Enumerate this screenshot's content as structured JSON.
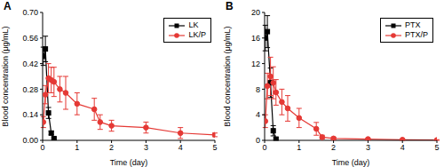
{
  "chart_data": [
    {
      "type": "line",
      "title": "A",
      "x_label": "Time (day)",
      "y_label": "Blood concentration (μg/mL)",
      "xlim": [
        0,
        5
      ],
      "xticks": [
        0,
        1,
        2,
        3,
        4,
        5
      ],
      "ylim": [
        0,
        0.7
      ],
      "yticks": [
        {
          "value": 0,
          "label": "0.00"
        },
        {
          "value": 0.14,
          "label": "0.14"
        },
        {
          "value": 0.28,
          "label": "0.28"
        },
        {
          "value": 0.42,
          "label": "0.42"
        },
        {
          "value": 0.56,
          "label": "0.56"
        },
        {
          "value": 0.7,
          "label": "0.70"
        }
      ],
      "grid": false,
      "legend": "top-right",
      "series": [
        {
          "name": "LK",
          "color": "#000000",
          "marker": "square",
          "x": [
            0.02,
            0.08,
            0.17,
            0.25,
            0.33
          ],
          "values": [
            0.46,
            0.5,
            0.15,
            0.04,
            0.01
          ],
          "error": [
            0.05,
            0.07,
            0.03,
            0.01,
            0.005
          ]
        },
        {
          "name": "LK/P",
          "color": "#e53935",
          "marker": "circle",
          "x": [
            0.02,
            0.08,
            0.17,
            0.25,
            0.33,
            0.5,
            0.67,
            1,
            1.5,
            1.67,
            2,
            3,
            4,
            5
          ],
          "values": [
            0.1,
            0.25,
            0.34,
            0.33,
            0.32,
            0.28,
            0.26,
            0.2,
            0.17,
            0.1,
            0.08,
            0.07,
            0.04,
            0.03
          ],
          "error": [
            0.03,
            0.05,
            0.08,
            0.07,
            0.08,
            0.07,
            0.09,
            0.06,
            0.06,
            0.04,
            0.03,
            0.03,
            0.03,
            0.01
          ]
        }
      ]
    },
    {
      "type": "line",
      "title": "B",
      "x_label": "Time (day)",
      "y_label": "Blood concentration (μg/mL)",
      "xlim": [
        0,
        5
      ],
      "xticks": [
        0,
        1,
        2,
        3,
        4,
        5
      ],
      "ylim": [
        0,
        20
      ],
      "yticks": [
        0,
        4,
        8,
        12,
        16,
        20
      ],
      "grid": false,
      "legend": "top-right",
      "series": [
        {
          "name": "PTX",
          "color": "#000000",
          "marker": "square",
          "x": [
            0.02,
            0.08,
            0.17,
            0.25,
            0.33
          ],
          "values": [
            16,
            17,
            9,
            1.5,
            0.2
          ],
          "error": [
            2,
            2.5,
            2.3,
            0.8,
            0.2
          ]
        },
        {
          "name": "PTX/P",
          "color": "#e53935",
          "marker": "circle",
          "x": [
            0.02,
            0.08,
            0.17,
            0.25,
            0.33,
            0.5,
            0.67,
            1,
            1.5,
            1.67,
            2,
            3,
            4,
            5
          ],
          "values": [
            3,
            8.5,
            10,
            9,
            7.5,
            6,
            5,
            3.5,
            1.8,
            0.5,
            0.3,
            0.2,
            0.1,
            0.05
          ],
          "error": [
            1,
            2,
            3,
            2.5,
            2,
            2,
            2,
            1.5,
            1,
            0.3,
            0.2,
            0.1,
            0.1,
            0.05
          ]
        }
      ]
    }
  ]
}
